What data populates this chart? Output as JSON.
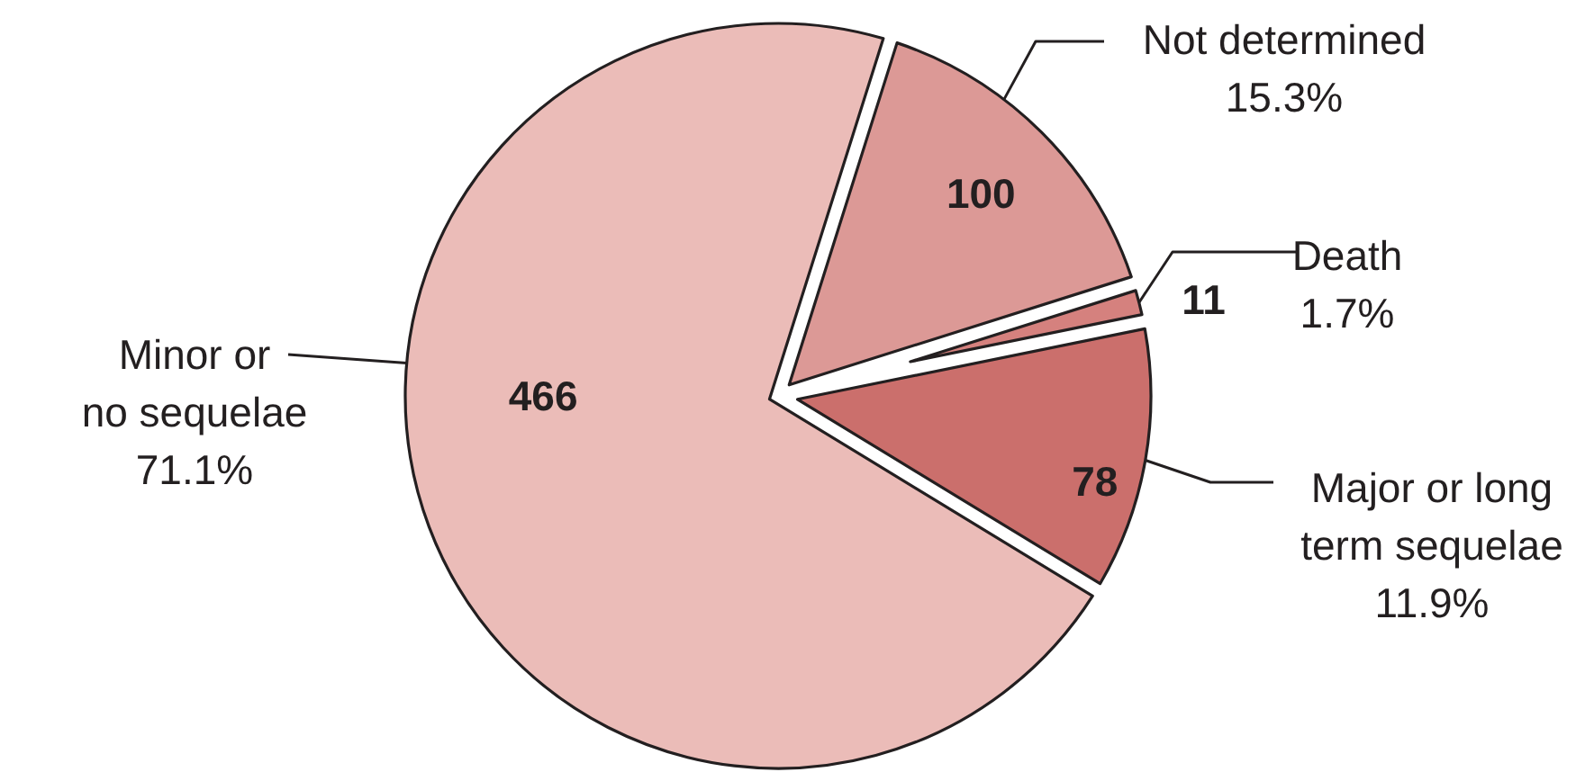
{
  "chart_data": {
    "type": "pie",
    "categories": [
      "Not determined\n15.3%",
      "Death\n1.7%",
      "Major or long\nterm sequelae\n11.9%",
      "Minor or\nno sequelae\n71.1%"
    ],
    "values": [
      100,
      11,
      78,
      466
    ],
    "colors": [
      "#dc9996",
      "#d5817e",
      "#cb6f6c",
      "#ebbcb8"
    ],
    "data_labels": true
  }
}
